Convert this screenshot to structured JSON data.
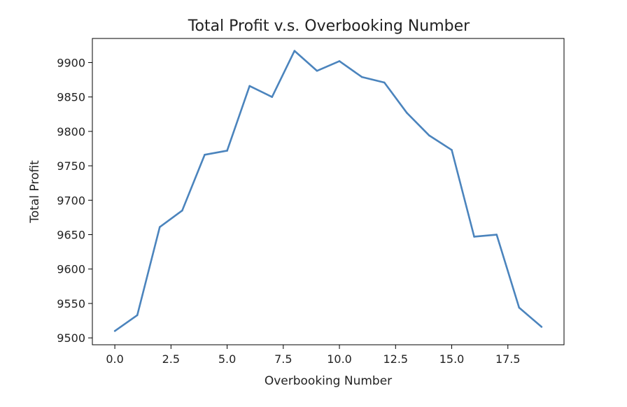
{
  "chart_data": {
    "type": "line",
    "title": "Total Profit v.s. Overbooking Number",
    "xlabel": "Overbooking Number",
    "ylabel": "Total Profit",
    "xlim": [
      -1.0,
      20.0
    ],
    "ylim": [
      9490,
      9935
    ],
    "x_ticks": [
      0.0,
      2.5,
      5.0,
      7.5,
      10.0,
      12.5,
      15.0,
      17.5
    ],
    "x_tick_labels": [
      "0.0",
      "2.5",
      "5.0",
      "7.5",
      "10.0",
      "12.5",
      "15.0",
      "17.5"
    ],
    "y_ticks": [
      9500,
      9550,
      9600,
      9650,
      9700,
      9750,
      9800,
      9850,
      9900
    ],
    "y_tick_labels": [
      "9500",
      "9550",
      "9600",
      "9650",
      "9700",
      "9750",
      "9800",
      "9850",
      "9900"
    ],
    "grid": false,
    "series": [
      {
        "color": "#4b84bd",
        "x": [
          0,
          1,
          2,
          3,
          4,
          5,
          6,
          7,
          8,
          9,
          10,
          11,
          12,
          13,
          14,
          15,
          16,
          17,
          18,
          19
        ],
        "values": [
          9510,
          9533,
          9661,
          9685,
          9766,
          9772,
          9866,
          9850,
          9917,
          9888,
          9902,
          9879,
          9871,
          9827,
          9794,
          9773,
          9647,
          9650,
          9544,
          9516
        ]
      }
    ]
  }
}
